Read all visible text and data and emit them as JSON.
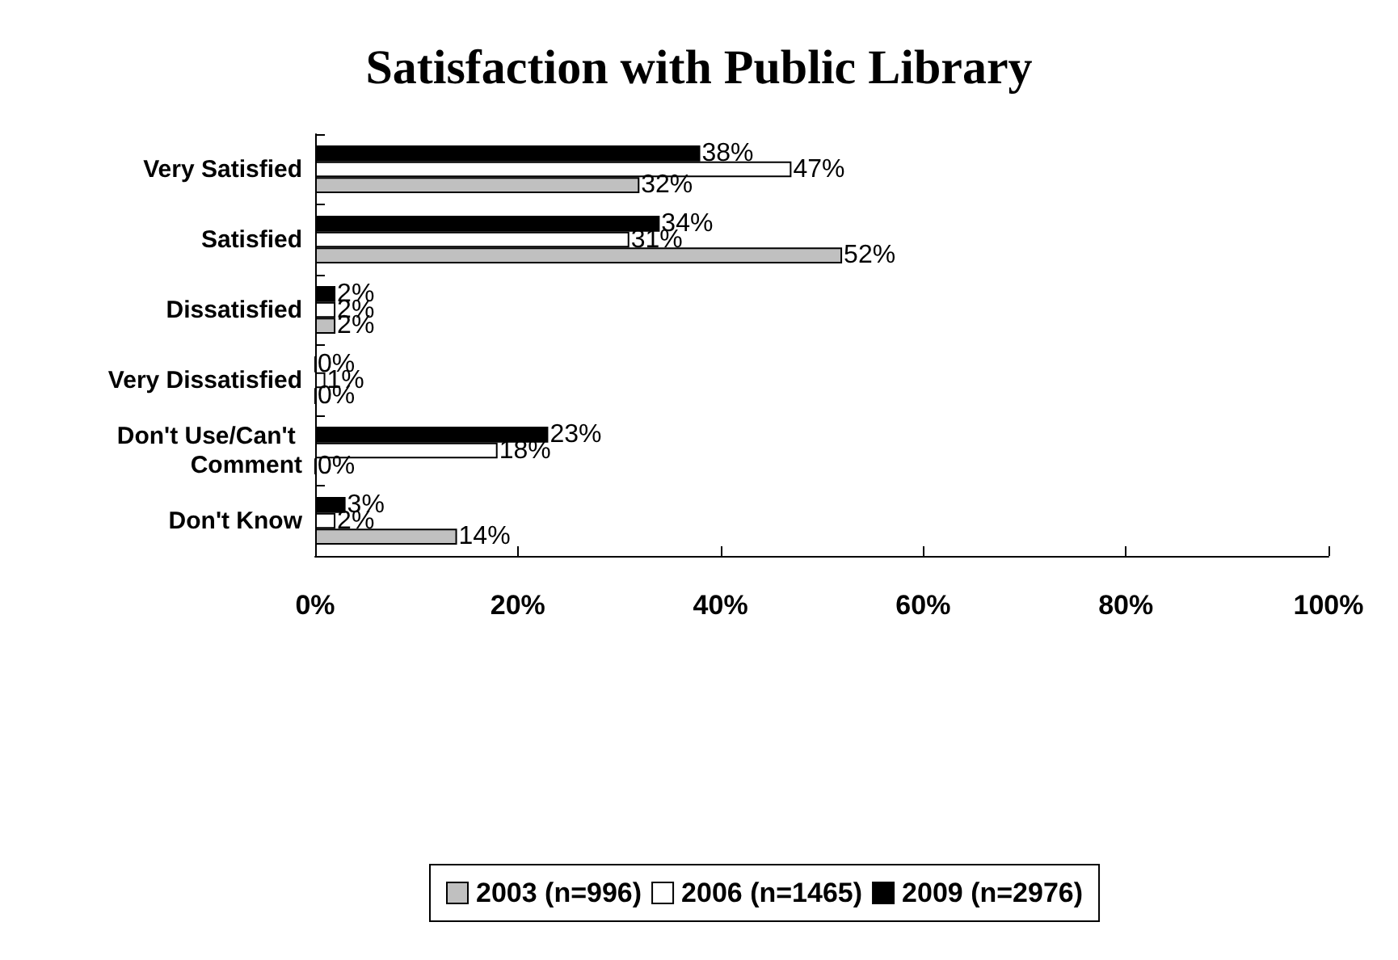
{
  "chart_data": {
    "type": "bar",
    "orientation": "horizontal",
    "title": "Satisfaction with Public Library",
    "categories": [
      "Very Satisfied",
      "Satisfied",
      "Dissatisfied",
      "Very Dissatisfied",
      "Don't Use/Can't Comment",
      "Don't Know"
    ],
    "series": [
      {
        "name": "2003 (n=996)",
        "color": "#c0c0c0",
        "values": [
          32,
          52,
          2,
          0,
          0,
          14
        ],
        "value_labels": [
          "32%",
          "52%",
          "2%",
          "0%",
          "0%",
          "14%"
        ]
      },
      {
        "name": "2006 (n=1465)",
        "color": "#ffffff",
        "values": [
          47,
          31,
          2,
          1,
          18,
          2
        ],
        "value_labels": [
          "47%",
          "31%",
          "2%",
          "1%",
          "18%",
          "2%"
        ]
      },
      {
        "name": "2009 (n=2976)",
        "color": "#000000",
        "values": [
          38,
          34,
          2,
          0,
          23,
          3
        ],
        "value_labels": [
          "38%",
          "34%",
          "2%",
          "0%",
          "23%",
          "3%"
        ]
      }
    ],
    "xlim": [
      0,
      100
    ],
    "xticks": [
      {
        "value": 0,
        "label": "0%"
      },
      {
        "value": 20,
        "label": "20%"
      },
      {
        "value": 40,
        "label": "40%"
      },
      {
        "value": 60,
        "label": "60%"
      },
      {
        "value": 80,
        "label": "80%"
      },
      {
        "value": 100,
        "label": "100%"
      }
    ],
    "grid": false,
    "legend": "bottom"
  }
}
